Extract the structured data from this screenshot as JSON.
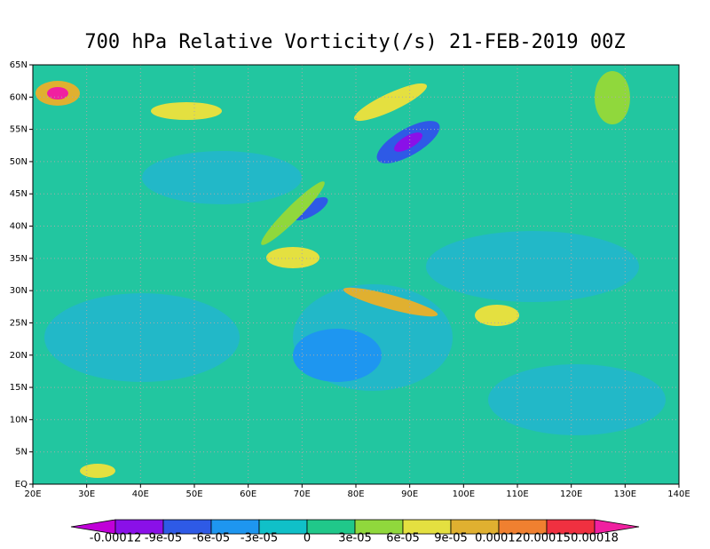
{
  "title": "700 hPa Relative Vorticity(/s) 21-FEB-2019 00Z",
  "lat_labels": [
    "65N",
    "60N",
    "55N",
    "50N",
    "45N",
    "40N",
    "35N",
    "30N",
    "25N",
    "20N",
    "15N",
    "10N",
    "5N",
    "EQ"
  ],
  "lon_labels": [
    "20E",
    "30E",
    "40E",
    "50E",
    "60E",
    "70E",
    "80E",
    "90E",
    "100E",
    "110E",
    "120E",
    "130E",
    "140E"
  ],
  "colorbar": {
    "labels": [
      "-0.00012",
      "-9e-05",
      "-6e-05",
      "-3e-05",
      "0",
      "3e-05",
      "6e-05",
      "9e-05",
      "0.00012",
      "0.00015",
      "0.00018"
    ],
    "colors": [
      "#c000d8",
      "#8a10e8",
      "#2e5ae6",
      "#1e96f0",
      "#10c0c8",
      "#20c88a",
      "#90d83c",
      "#e4e040",
      "#e0b030",
      "#f08030",
      "#f03040",
      "#f020a0"
    ]
  }
}
